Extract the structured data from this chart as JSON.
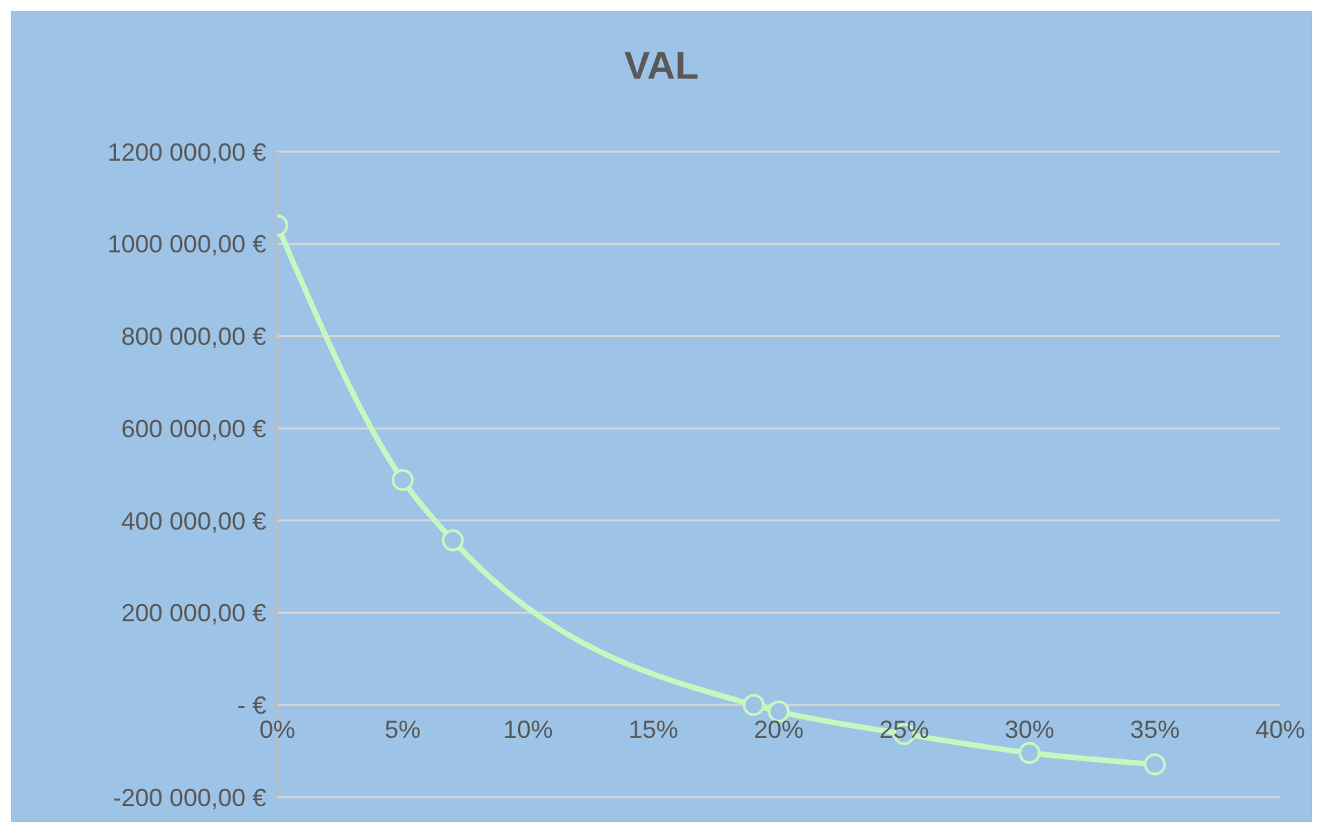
{
  "chart_data": {
    "type": "line",
    "title": "VAL",
    "x": [
      0,
      5,
      7,
      19,
      20,
      25,
      30,
      35
    ],
    "series": [
      {
        "color": "#c6f7c0",
        "values": [
          1040000,
          488000,
          357000,
          0,
          -14000,
          -63000,
          -104000,
          -129000
        ]
      }
    ],
    "xlim": [
      0,
      40
    ],
    "xticks": [
      {
        "value": 0,
        "label": "0%"
      },
      {
        "value": 5,
        "label": "5%"
      },
      {
        "value": 10,
        "label": "10%"
      },
      {
        "value": 15,
        "label": "15%"
      },
      {
        "value": 20,
        "label": "20%"
      },
      {
        "value": 25,
        "label": "25%"
      },
      {
        "value": 30,
        "label": "30%"
      },
      {
        "value": 35,
        "label": "35%"
      },
      {
        "value": 40,
        "label": "40%"
      }
    ],
    "ylim": [
      -200000,
      1200000
    ],
    "yticks": [
      {
        "value": -200000,
        "label": "-200 000,00 €"
      },
      {
        "value": 0,
        "label": "-   €"
      },
      {
        "value": 200000,
        "label": "200 000,00 €"
      },
      {
        "value": 400000,
        "label": "400 000,00 €"
      },
      {
        "value": 600000,
        "label": "600 000,00 €"
      },
      {
        "value": 800000,
        "label": "800 000,00 €"
      },
      {
        "value": 1000000,
        "label": "1000 000,00 €"
      },
      {
        "value": 1200000,
        "label": "1200 000,00 €"
      }
    ],
    "grid": "y",
    "marker": "circle",
    "line_style": "solid"
  }
}
